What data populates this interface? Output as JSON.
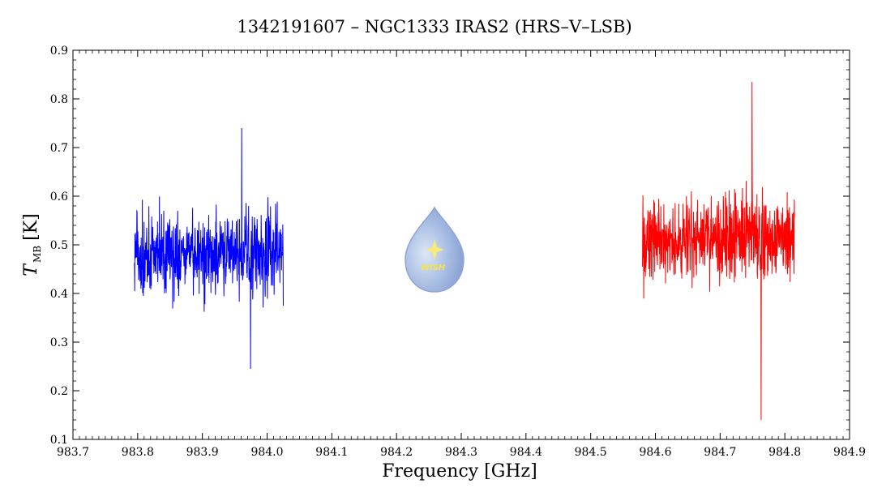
{
  "chart_data": {
    "type": "line",
    "title": "1342191607 – NGC1333 IRAS2 (HRS–V–LSB)",
    "xlabel": "Frequency [GHz]",
    "ylabel_main": "T",
    "ylabel_sub": "MB",
    "ylabel_unit": "[K]",
    "xlim": [
      983.7,
      984.9
    ],
    "ylim": [
      0.1,
      0.9
    ],
    "xticks": [
      "983.7",
      "983.8",
      "983.9",
      "984.0",
      "984.1",
      "984.2",
      "984.3",
      "984.4",
      "984.5",
      "984.6",
      "984.7",
      "984.8",
      "984.9"
    ],
    "yticks": [
      "0.1",
      "0.2",
      "0.3",
      "0.4",
      "0.5",
      "0.6",
      "0.7",
      "0.8",
      "0.9"
    ],
    "grid": false,
    "series": [
      {
        "color": "#0000ff",
        "x_range": [
          983.795,
          984.025
        ],
        "points": 620,
        "mean": 0.48,
        "envelope_min": 0.245,
        "envelope_max": 0.74
      },
      {
        "color": "#ff0000",
        "x_range": [
          984.58,
          984.815
        ],
        "points": 620,
        "mean": 0.51,
        "envelope_min": 0.14,
        "envelope_max": 0.835
      }
    ],
    "watermark": {
      "text": "WISH",
      "icon": "water-drop-star-icon"
    }
  }
}
